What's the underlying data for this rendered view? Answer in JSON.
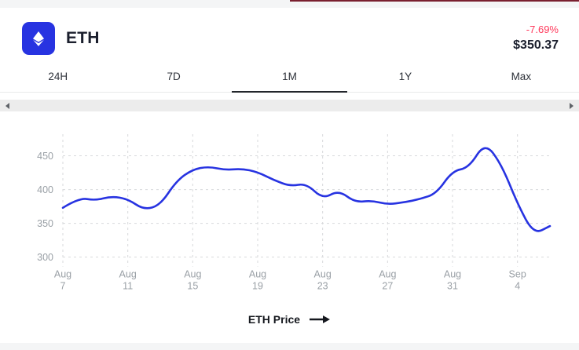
{
  "header": {
    "coin_symbol": "ETH",
    "change_percent": "-7.69%",
    "price": "$350.37",
    "change_color": "#ff3a5c",
    "accent_color": "#2733e1"
  },
  "tabs": [
    {
      "label": "24H",
      "active": false
    },
    {
      "label": "7D",
      "active": false
    },
    {
      "label": "1M",
      "active": true
    },
    {
      "label": "1Y",
      "active": false
    },
    {
      "label": "Max",
      "active": false
    }
  ],
  "footer": {
    "label": "ETH Price"
  },
  "decor": {
    "top_bar_color": "#7a2030"
  },
  "chart_data": {
    "type": "line",
    "title": "ETH Price (1M)",
    "x": [
      "Aug 7",
      "Aug 8",
      "Aug 9",
      "Aug 10",
      "Aug 11",
      "Aug 12",
      "Aug 13",
      "Aug 14",
      "Aug 15",
      "Aug 16",
      "Aug 17",
      "Aug 18",
      "Aug 19",
      "Aug 20",
      "Aug 21",
      "Aug 22",
      "Aug 23",
      "Aug 24",
      "Aug 25",
      "Aug 26",
      "Aug 27",
      "Aug 28",
      "Aug 29",
      "Aug 30",
      "Aug 31",
      "Sep 1",
      "Sep 2",
      "Sep 3",
      "Sep 4",
      "Sep 5",
      "Sep 6"
    ],
    "series": [
      {
        "name": "ETH Price",
        "values": [
          373,
          388,
          384,
          390,
          386,
          370,
          377,
          413,
          430,
          434,
          429,
          431,
          426,
          414,
          405,
          409,
          386,
          399,
          381,
          384,
          378,
          381,
          386,
          394,
          428,
          432,
          470,
          438,
          379,
          334,
          346
        ]
      }
    ],
    "x_tick_indices": [
      0,
      4,
      8,
      12,
      16,
      20,
      24,
      28
    ],
    "y_ticks": [
      300,
      350,
      400,
      450
    ],
    "ylim": [
      288,
      482
    ],
    "line_color": "#2733e1",
    "grid": "dashed",
    "grid_color": "#d7d9db",
    "label_color": "#9aa0a6",
    "legend_position": "bottom"
  }
}
